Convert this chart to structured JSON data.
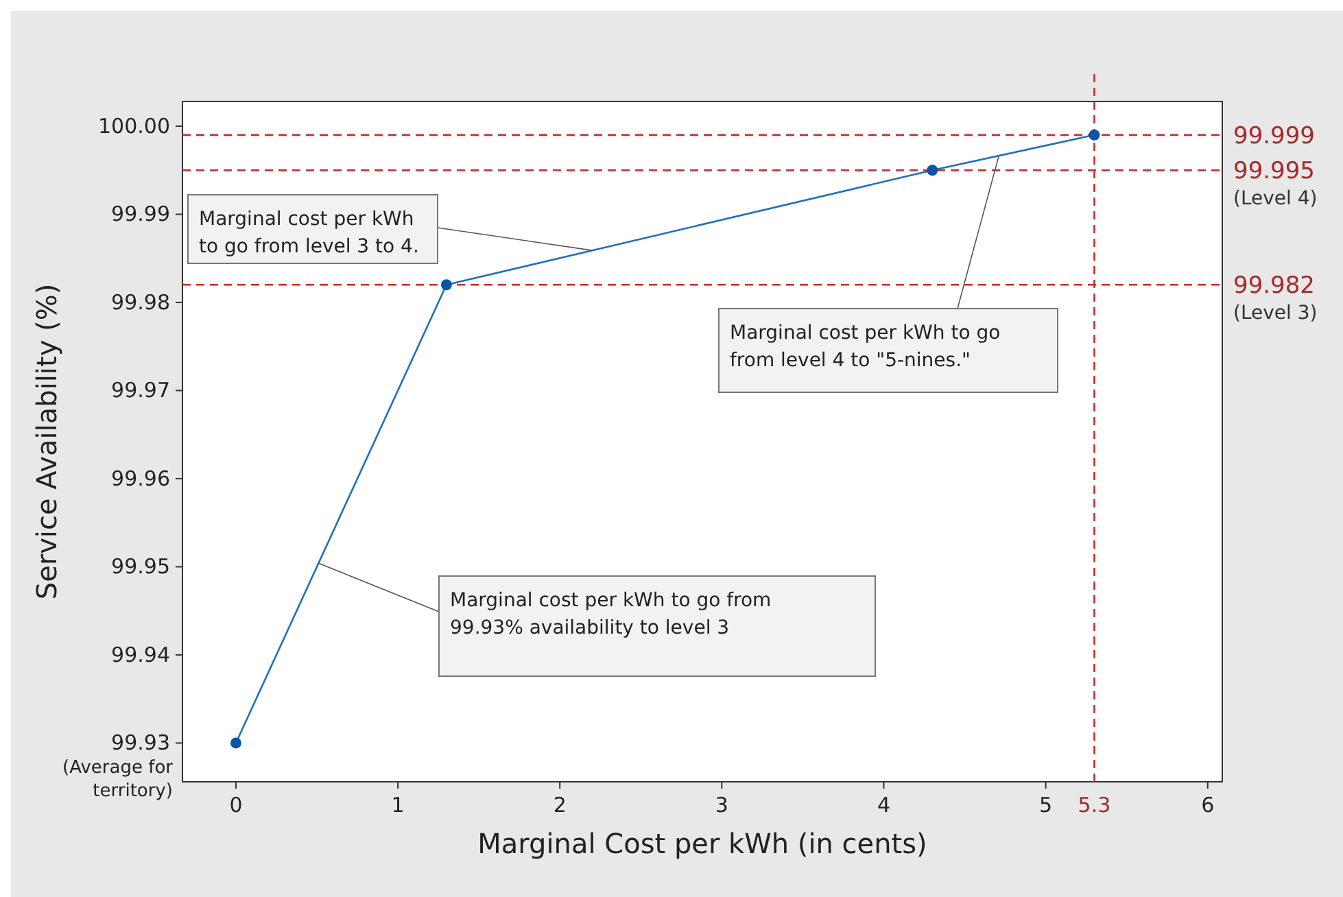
{
  "chart_data": {
    "type": "line",
    "xlabel": "Marginal Cost per kWh (in cents)",
    "ylabel": "Service Availability (%)",
    "x": [
      0,
      1.3,
      4.3,
      5.3
    ],
    "series": [
      {
        "color": "#1f6fbf",
        "values": [
          99.93,
          99.982,
          99.995,
          99.999
        ]
      }
    ],
    "marker": "circle",
    "line_style": "solid",
    "grid": false,
    "xlim": [
      -0.33,
      6.09
    ],
    "xticks": [
      0,
      1,
      2,
      3,
      4,
      5,
      6
    ],
    "ylim": [
      99.9256,
      100.0028
    ],
    "yticks": [
      99.93,
      99.94,
      99.95,
      99.96,
      99.97,
      99.98,
      99.99,
      {
        "value": 100,
        "label": "100.00"
      }
    ],
    "ref_lines": [
      {
        "axis": "y",
        "value": 99.999,
        "label": "99.999",
        "color": "#d62728",
        "line_style": "dashed"
      },
      {
        "axis": "y",
        "value": 99.995,
        "label": "99.995\n(Level 4)",
        "color": "#d62728",
        "line_style": "dashed"
      },
      {
        "axis": "y",
        "value": 99.982,
        "label": "99.982\n(Level 3)",
        "color": "#d62728",
        "line_style": "dashed"
      },
      {
        "axis": "x",
        "value": 5.3,
        "label": "5.3",
        "color": "#d62728",
        "line_style": "dashed"
      }
    ],
    "annotations": [
      {
        "text": "Marginal cost per kWh\nto go from level 3 to 4.",
        "x": 2.2,
        "y": 99.9859
      },
      {
        "text": "Marginal cost per kWh to go\nfrom level 4 to \"5-nines.\"",
        "x": 4.71,
        "y": 99.9966
      },
      {
        "text": "Marginal cost per kWh to go from\n99.93% availability to level 3",
        "x": 0.51,
        "y": 99.9504
      },
      "(Average for\nterritory)"
    ]
  }
}
